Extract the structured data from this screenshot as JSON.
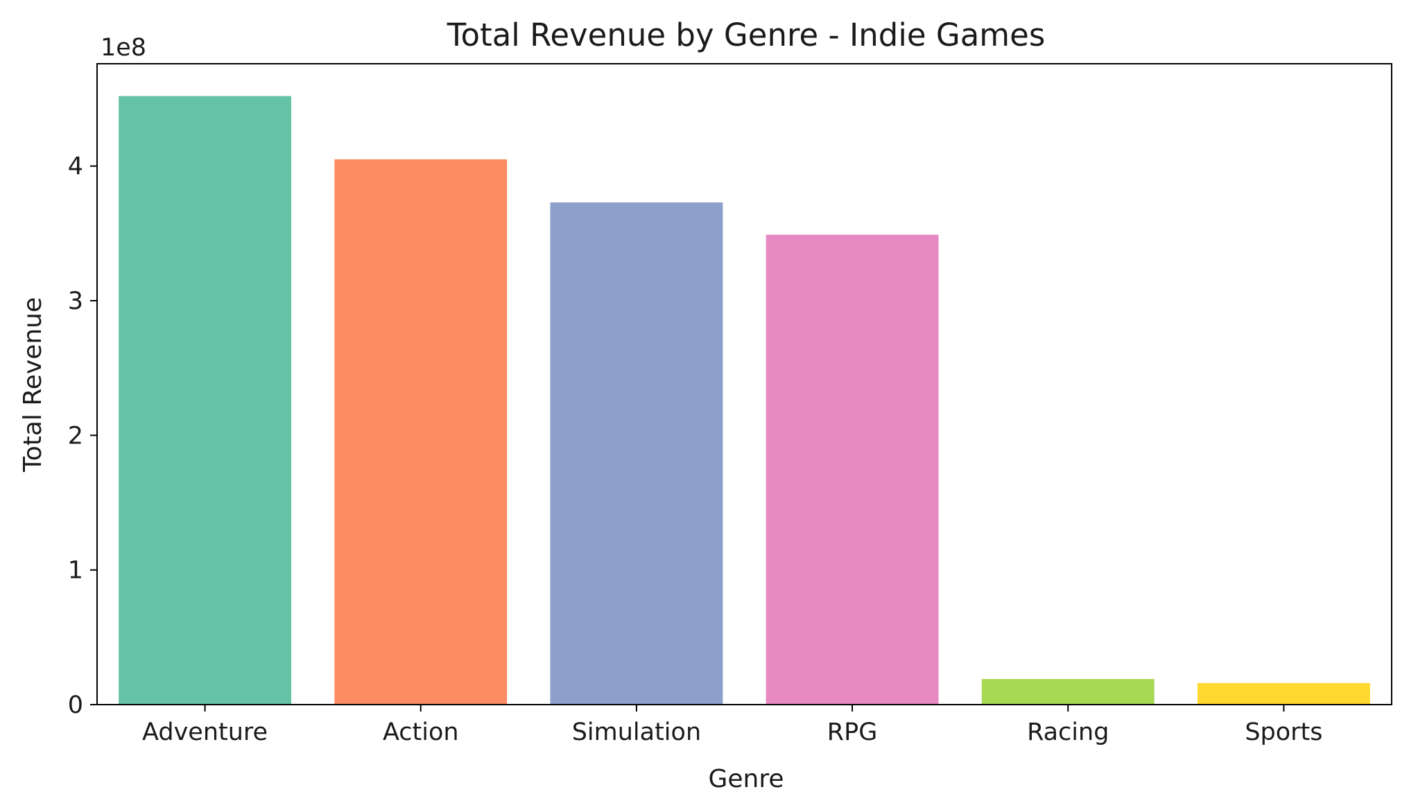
{
  "chart_data": {
    "type": "bar",
    "title": "Total Revenue by Genre - Indie Games",
    "xlabel": "Genre",
    "ylabel": "Total Revenue",
    "offset_label": "1e8",
    "categories": [
      "Adventure",
      "Action",
      "Simulation",
      "RPG",
      "Racing",
      "Sports"
    ],
    "values": [
      452000000,
      405000000,
      373000000,
      349000000,
      19000000,
      16000000
    ],
    "colors": [
      "#66c2a5",
      "#fc8d62",
      "#8da0cb",
      "#e78ac3",
      "#a6d854",
      "#ffd92f"
    ],
    "ylim": [
      0,
      476000000
    ],
    "yticks": [
      0,
      100000000,
      200000000,
      300000000,
      400000000
    ],
    "ytick_labels": [
      "0",
      "1",
      "2",
      "3",
      "4"
    ],
    "grid": false,
    "legend": "none"
  }
}
